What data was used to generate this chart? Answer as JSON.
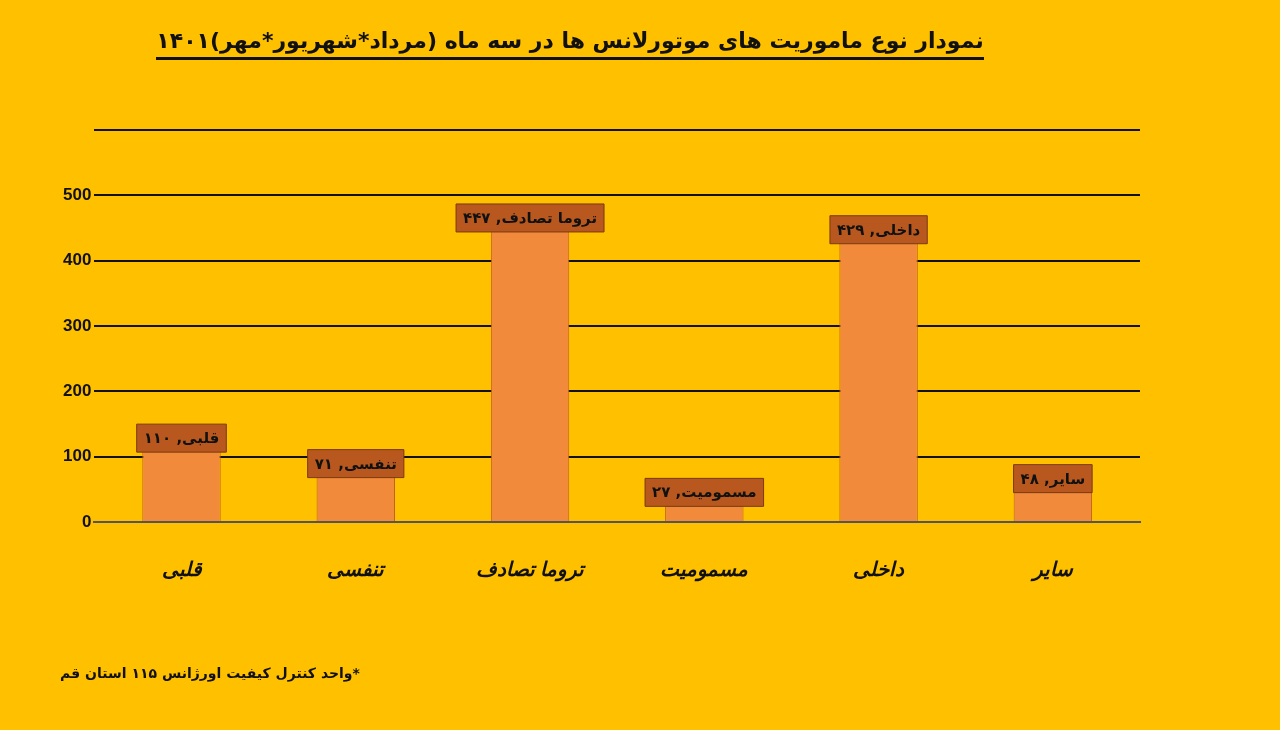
{
  "chart_data": {
    "type": "bar",
    "title": "نمودار نوع ماموریت های موتورلانس ها در سه ماه (مرداد*شهریور*مهر)۱۴۰۱",
    "categories": [
      "قلبی",
      "تنفسی",
      "تروما تصادف",
      "مسمومیت",
      "داخلی",
      "سایر"
    ],
    "values": [
      110,
      71,
      447,
      27,
      429,
      48
    ],
    "value_labels": [
      "قلبی, ۱۱۰",
      "تنفسی, ۷۱",
      "تروما تصادف, ۴۴۷",
      "مسمومیت, ۲۷",
      "داخلی, ۴۲۹",
      "سایر, ۴۸"
    ],
    "color": "#f28a3c",
    "ylim": [
      0,
      600
    ],
    "yticks": [
      0,
      100,
      200,
      300,
      400,
      500,
      {
        "value": 600,
        "label": null
      }
    ],
    "grid": "y",
    "annotations": [
      "*واحد کنترل کیفیت اورژانس ۱۱۵ استان قم"
    ]
  }
}
